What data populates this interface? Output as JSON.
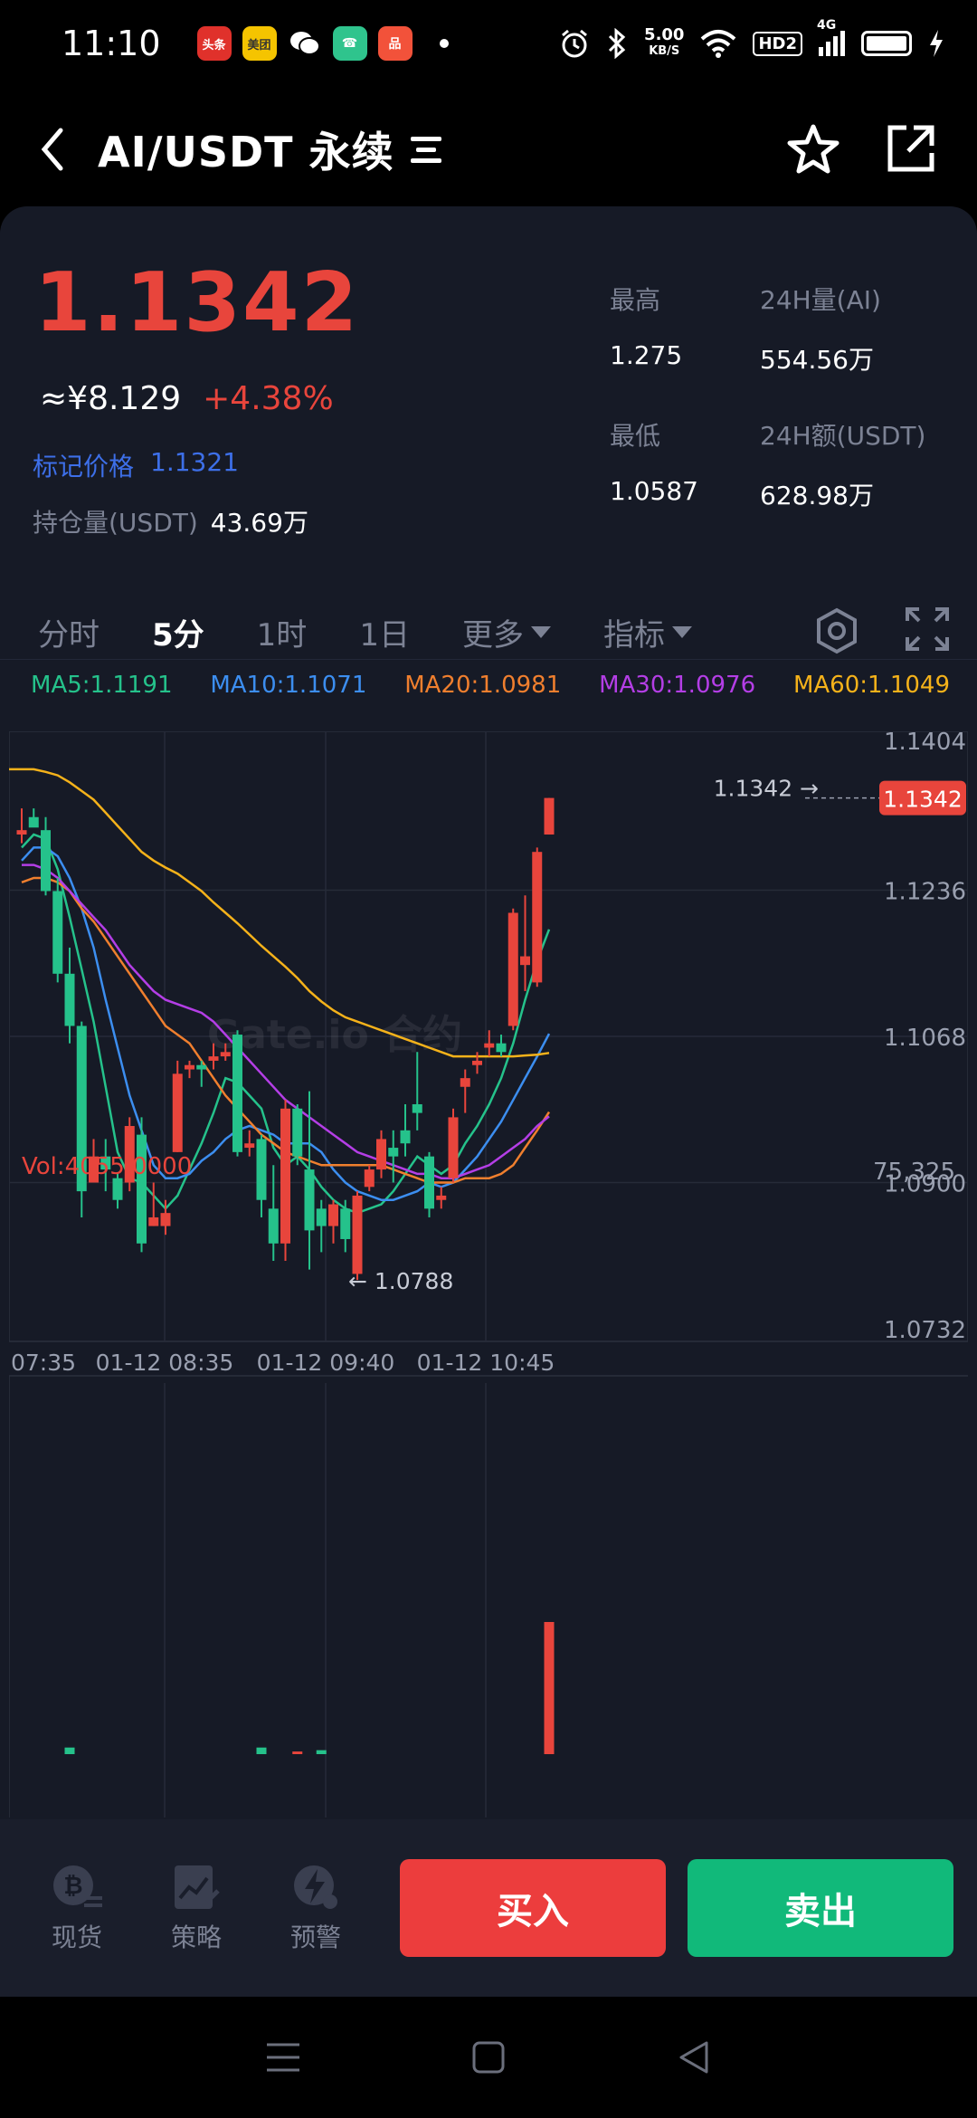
{
  "status": {
    "time": "11:10",
    "apps": [
      {
        "label": "头条",
        "color": "#e0312b"
      },
      {
        "label": "美团",
        "color": "#f5c400"
      },
      {
        "label": "微",
        "color": "#2c2c2c"
      },
      {
        "label": "☎",
        "color": "#2fc48d"
      },
      {
        "label": "品",
        "color": "#f2523a"
      }
    ],
    "net_speed_value": "5.00",
    "net_speed_unit": "KB/S",
    "hd": "HD2",
    "signal": "4G"
  },
  "header": {
    "title": "AI/USDT 永续"
  },
  "ticker": {
    "price": "1.1342",
    "cny": "≈¥8.129",
    "change": "+4.38%",
    "mark_label": "标记价格",
    "mark_value": "1.1321",
    "oi_label": "持仓量(USDT)",
    "oi_value": "43.69万",
    "high_label": "最高",
    "high_value": "1.275",
    "vol_label": "24H量(AI)",
    "vol_value": "554.56万",
    "low_label": "最低",
    "low_value": "1.0587",
    "amt_label": "24H额(USDT)",
    "amt_value": "628.98万"
  },
  "tabs": [
    {
      "label": "分时",
      "active": false
    },
    {
      "label": "5分",
      "active": true
    },
    {
      "label": "1时",
      "active": false
    },
    {
      "label": "1日",
      "active": false
    },
    {
      "label": "更多",
      "dropdown": true
    },
    {
      "label": "指标",
      "dropdown": true
    }
  ],
  "ma": [
    {
      "label": "MA5:1.1191",
      "color": "#25c28b"
    },
    {
      "label": "MA10:1.1071",
      "color": "#3c8ef0"
    },
    {
      "label": "MA20:1.0981",
      "color": "#f07f2e"
    },
    {
      "label": "MA30:1.0976",
      "color": "#b43ee6"
    },
    {
      "label": "MA60:1.1049",
      "color": "#f5b21a"
    }
  ],
  "chart_data": {
    "type": "candlestick",
    "y_ticks": [
      "1.1404",
      "1.1236",
      "1.1068",
      "1.0900",
      "1.0732"
    ],
    "ylim": [
      1.0732,
      1.1404
    ],
    "x_ticks": [
      "07:35",
      "01-12 08:35",
      "01-12 09:40",
      "01-12 10:45"
    ],
    "last_price_label": "1.1342",
    "last_price_arrow": "1.1342 →",
    "low_marker": "← 1.0788",
    "watermark": "Gate.io 合约",
    "up_color": "#e8453c",
    "down_color": "#25c28b",
    "candles": [
      {
        "o": 1.13,
        "h": 1.133,
        "l": 1.129,
        "c": 1.1305
      },
      {
        "o": 1.132,
        "h": 1.133,
        "l": 1.131,
        "c": 1.1308
      },
      {
        "o": 1.1305,
        "h": 1.132,
        "l": 1.123,
        "c": 1.1235
      },
      {
        "o": 1.1235,
        "h": 1.125,
        "l": 1.113,
        "c": 1.114
      },
      {
        "o": 1.114,
        "h": 1.117,
        "l": 1.106,
        "c": 1.108
      },
      {
        "o": 1.108,
        "h": 1.1085,
        "l": 1.086,
        "c": 1.089
      },
      {
        "o": 1.09,
        "h": 1.095,
        "l": 1.09,
        "c": 1.093
      },
      {
        "o": 1.093,
        "h": 1.095,
        "l": 1.089,
        "c": 1.0915
      },
      {
        "o": 1.0905,
        "h": 1.091,
        "l": 1.087,
        "c": 1.088
      },
      {
        "o": 1.09,
        "h": 1.0975,
        "l": 1.089,
        "c": 1.0965
      },
      {
        "o": 1.0955,
        "h": 1.0975,
        "l": 1.082,
        "c": 1.083
      },
      {
        "o": 1.085,
        "h": 1.09,
        "l": 1.085,
        "c": 1.086
      },
      {
        "o": 1.085,
        "h": 1.088,
        "l": 1.084,
        "c": 1.0865
      },
      {
        "o": 1.0935,
        "h": 1.104,
        "l": 1.0935,
        "c": 1.1025
      },
      {
        "o": 1.103,
        "h": 1.104,
        "l": 1.102,
        "c": 1.1035
      },
      {
        "o": 1.1035,
        "h": 1.104,
        "l": 1.101,
        "c": 1.103
      },
      {
        "o": 1.104,
        "h": 1.106,
        "l": 1.103,
        "c": 1.1045
      },
      {
        "o": 1.1045,
        "h": 1.106,
        "l": 1.104,
        "c": 1.105
      },
      {
        "o": 1.107,
        "h": 1.1075,
        "l": 1.093,
        "c": 1.0935
      },
      {
        "o": 1.094,
        "h": 1.096,
        "l": 1.093,
        "c": 1.0945
      },
      {
        "o": 1.095,
        "h": 1.0955,
        "l": 1.086,
        "c": 1.088
      },
      {
        "o": 1.087,
        "h": 1.092,
        "l": 1.081,
        "c": 1.083
      },
      {
        "o": 1.083,
        "h": 1.0995,
        "l": 1.081,
        "c": 1.0985
      },
      {
        "o": 1.0985,
        "h": 1.099,
        "l": 1.092,
        "c": 1.093
      },
      {
        "o": 1.0915,
        "h": 1.1005,
        "l": 1.08,
        "c": 1.0845
      },
      {
        "o": 1.087,
        "h": 1.088,
        "l": 1.082,
        "c": 1.085
      },
      {
        "o": 1.085,
        "h": 1.088,
        "l": 1.083,
        "c": 1.0875
      },
      {
        "o": 1.087,
        "h": 1.088,
        "l": 1.082,
        "c": 1.0835
      },
      {
        "o": 1.0795,
        "h": 1.089,
        "l": 1.0788,
        "c": 1.0885
      },
      {
        "o": 1.0895,
        "h": 1.092,
        "l": 1.089,
        "c": 1.0915
      },
      {
        "o": 1.0915,
        "h": 1.096,
        "l": 1.0905,
        "c": 1.095
      },
      {
        "o": 1.094,
        "h": 1.096,
        "l": 1.09,
        "c": 1.093
      },
      {
        "o": 1.096,
        "h": 1.099,
        "l": 1.093,
        "c": 1.0945
      },
      {
        "o": 1.099,
        "h": 1.105,
        "l": 1.096,
        "c": 1.098
      },
      {
        "o": 1.093,
        "h": 1.0935,
        "l": 1.086,
        "c": 1.087
      },
      {
        "o": 1.088,
        "h": 1.0895,
        "l": 1.087,
        "c": 1.0885
      },
      {
        "o": 1.0905,
        "h": 1.0985,
        "l": 1.09,
        "c": 1.0975
      },
      {
        "o": 1.101,
        "h": 1.103,
        "l": 1.098,
        "c": 1.102
      },
      {
        "o": 1.1035,
        "h": 1.105,
        "l": 1.1025,
        "c": 1.104
      },
      {
        "o": 1.1055,
        "h": 1.1075,
        "l": 1.1045,
        "c": 1.106
      },
      {
        "o": 1.106,
        "h": 1.107,
        "l": 1.1045,
        "c": 1.105
      },
      {
        "o": 1.108,
        "h": 1.1215,
        "l": 1.1075,
        "c": 1.121
      },
      {
        "o": 1.115,
        "h": 1.123,
        "l": 1.112,
        "c": 1.116
      },
      {
        "o": 1.113,
        "h": 1.1285,
        "l": 1.1125,
        "c": 1.128
      },
      {
        "o": 1.13,
        "h": 1.1342,
        "l": 1.13,
        "c": 1.1342
      }
    ],
    "ma_lines": [
      {
        "name": "MA5",
        "color": "#25c28b",
        "values": [
          1.1285,
          1.13,
          1.1295,
          1.126,
          1.1205,
          1.1145,
          1.1085,
          1.101,
          1.0935,
          1.0905,
          1.09,
          1.0885,
          1.087,
          1.0885,
          1.0915,
          1.0945,
          1.098,
          1.102,
          1.1015,
          1.1,
          1.0985,
          1.094,
          1.092,
          1.093,
          1.0915,
          1.0895,
          1.088,
          1.087,
          1.0865,
          1.087,
          1.0875,
          1.089,
          1.091,
          1.093,
          1.092,
          1.091,
          1.092,
          1.0945,
          1.0965,
          1.099,
          1.102,
          1.106,
          1.111,
          1.1155,
          1.1191
        ]
      },
      {
        "name": "MA10",
        "color": "#3c8ef0",
        "values": [
          1.127,
          1.1285,
          1.1285,
          1.1275,
          1.125,
          1.1215,
          1.117,
          1.111,
          1.1055,
          1.1,
          1.096,
          1.092,
          1.0905,
          1.0905,
          1.091,
          1.0925,
          1.0935,
          1.095,
          1.096,
          1.0965,
          1.096,
          1.0955,
          1.0945,
          1.0945,
          1.0945,
          1.0935,
          1.0915,
          1.09,
          1.089,
          1.0885,
          1.088,
          1.088,
          1.0885,
          1.089,
          1.09,
          1.0895,
          1.09,
          1.0915,
          1.093,
          1.095,
          1.097,
          1.0995,
          1.102,
          1.1045,
          1.1071
        ]
      },
      {
        "name": "MA20",
        "color": "#f07f2e",
        "values": [
          1.1245,
          1.125,
          1.125,
          1.1245,
          1.1235,
          1.1215,
          1.12,
          1.118,
          1.116,
          1.114,
          1.112,
          1.11,
          1.108,
          1.107,
          1.106,
          1.104,
          1.102,
          1.1,
          1.0985,
          1.097,
          1.0955,
          1.0945,
          1.0935,
          1.093,
          1.0925,
          1.092,
          1.092,
          1.092,
          1.092,
          1.092,
          1.092,
          1.0915,
          1.091,
          1.0905,
          1.09,
          1.09,
          1.09,
          1.0905,
          1.0905,
          1.0905,
          1.091,
          1.092,
          1.094,
          1.096,
          1.0981
        ]
      },
      {
        "name": "MA30",
        "color": "#b43ee6",
        "values": [
          1.1265,
          1.1265,
          1.126,
          1.125,
          1.1235,
          1.122,
          1.1205,
          1.119,
          1.117,
          1.115,
          1.1135,
          1.112,
          1.111,
          1.1105,
          1.11,
          1.1095,
          1.1085,
          1.107,
          1.1055,
          1.104,
          1.1025,
          1.101,
          1.0995,
          1.0985,
          1.0975,
          1.0965,
          1.0955,
          1.0945,
          1.0935,
          1.093,
          1.0925,
          1.092,
          1.0915,
          1.091,
          1.091,
          1.0905,
          1.0905,
          1.091,
          1.0915,
          1.092,
          1.093,
          1.094,
          1.095,
          1.0965,
          1.0976
        ]
      },
      {
        "name": "MA60",
        "color": "#f5b21a",
        "values": [
          1.1375,
          1.1375,
          1.1372,
          1.1368,
          1.136,
          1.135,
          1.134,
          1.1325,
          1.131,
          1.1295,
          1.128,
          1.127,
          1.1262,
          1.1255,
          1.1245,
          1.1235,
          1.1222,
          1.121,
          1.1198,
          1.1185,
          1.1172,
          1.116,
          1.1148,
          1.1135,
          1.112,
          1.1108,
          1.1098,
          1.109,
          1.1085,
          1.108,
          1.1075,
          1.107,
          1.1065,
          1.106,
          1.1055,
          1.105,
          1.1045,
          1.1045,
          1.1045,
          1.1045,
          1.1045,
          1.1045,
          1.1046,
          1.1047,
          1.1049
        ]
      }
    ],
    "volume": {
      "label": "Vol:4055.0000",
      "max_label": "75,325",
      "max": 75325
    }
  },
  "actions": {
    "spot": "现货",
    "strategy": "策略",
    "alert": "预警",
    "buy": "买入",
    "sell": "卖出"
  }
}
